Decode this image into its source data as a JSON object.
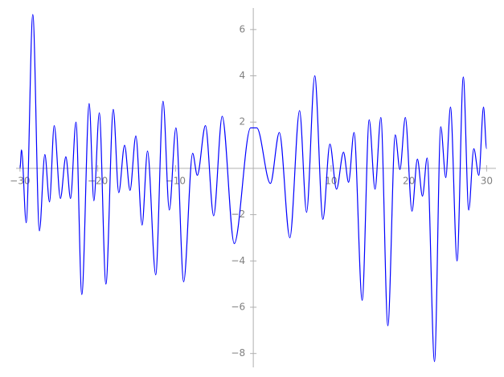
{
  "chart_data": {
    "type": "line",
    "x": [
      -30,
      -29.8,
      -29.2,
      -28.35,
      -27.5,
      -26.8,
      -26.2,
      -25.6,
      -24.8,
      -24.1,
      -23.5,
      -22.8,
      -22.05,
      -21.1,
      -20.5,
      -19.8,
      -18.95,
      -18.0,
      -17.3,
      -16.55,
      -15.85,
      -15.1,
      -14.3,
      -13.6,
      -12.55,
      -11.6,
      -10.8,
      -9.95,
      -8.95,
      -7.8,
      -7.2,
      -6.15,
      -5.1,
      -4.0,
      -2.45,
      -0.35,
      0.45,
      2.2,
      3.35,
      4.7,
      5.95,
      6.85,
      7.9,
      8.95,
      9.85,
      10.7,
      11.6,
      12.25,
      12.95,
      14.0,
      14.9,
      15.65,
      16.4,
      17.3,
      18.25,
      18.85,
      19.55,
      20.4,
      21.1,
      21.75,
      22.35,
      23.3,
      24.1,
      24.75,
      25.35,
      26.2,
      27.0,
      27.7,
      28.35,
      29.0,
      29.6,
      30
    ],
    "series": [
      {
        "color": "#0000ff",
        "values": [
          0,
          0.8,
          -2.35,
          6.65,
          -2.7,
          0.6,
          -1.45,
          1.85,
          -1.3,
          0.5,
          -1.3,
          2.0,
          -5.45,
          2.8,
          -1.4,
          2.4,
          -5.0,
          2.55,
          -1.05,
          1.0,
          -0.95,
          1.4,
          -2.45,
          0.75,
          -4.6,
          2.9,
          -1.8,
          1.75,
          -4.9,
          0.65,
          -0.3,
          1.85,
          -2.05,
          2.25,
          -3.25,
          1.75,
          1.75,
          -0.65,
          1.55,
          -3.0,
          2.5,
          -1.9,
          4.0,
          -2.2,
          1.05,
          -0.9,
          0.7,
          -0.6,
          1.55,
          -5.7,
          2.1,
          -0.9,
          2.2,
          -6.8,
          1.45,
          -0.05,
          2.2,
          -1.85,
          0.4,
          -1.2,
          0.45,
          -8.35,
          1.8,
          -0.4,
          2.65,
          -4.0,
          3.95,
          -1.8,
          0.85,
          -0.3,
          2.65,
          0.85
        ]
      }
    ],
    "xlim": [
      -30.5,
      31.2
    ],
    "ylim": [
      -8.6,
      6.93
    ],
    "xticks": [
      {
        "value": -30,
        "label": "−30"
      },
      {
        "value": -20,
        "label": "−20"
      },
      {
        "value": -10,
        "label": "−10"
      },
      10,
      20,
      30
    ],
    "yticks": [
      {
        "value": -8,
        "label": "−8"
      },
      {
        "value": -6,
        "label": "−6"
      },
      {
        "value": -4,
        "label": "−4"
      },
      {
        "value": -2,
        "label": "−2"
      },
      2,
      4,
      6
    ]
  }
}
